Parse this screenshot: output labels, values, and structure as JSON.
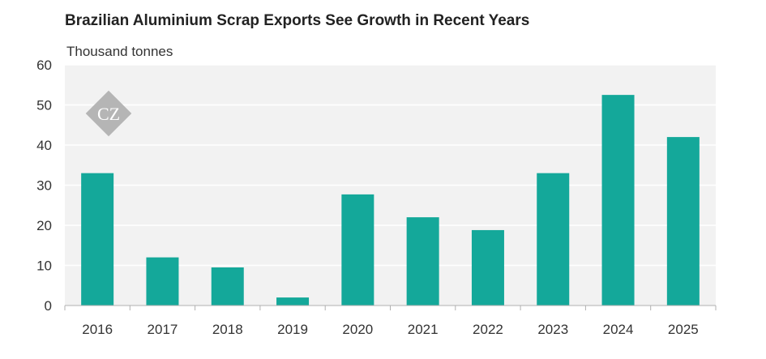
{
  "chart_data": {
    "type": "bar",
    "title": "Brazilian Aluminium Scrap Exports See Growth in Recent Years",
    "ylabel": "Thousand tonnes",
    "xlabel": "",
    "categories": [
      "2016",
      "2017",
      "2018",
      "2019",
      "2020",
      "2021",
      "2022",
      "2023",
      "2024",
      "2025"
    ],
    "values": [
      33,
      12,
      9.5,
      2,
      27.7,
      22,
      18.8,
      33,
      52.5,
      42
    ],
    "ylim": [
      0,
      60
    ],
    "yticks": [
      0,
      10,
      20,
      30,
      40,
      50,
      60
    ],
    "grid": true,
    "legend": "none",
    "colors": {
      "bar": "#14a89a",
      "plot_bg": "#f2f2f2",
      "grid": "#ffffff",
      "axis": "#b0b0b0",
      "watermark": "#b5b5b5"
    },
    "watermark": {
      "text": "CZ",
      "icon": "cz-diamond-logo"
    }
  }
}
